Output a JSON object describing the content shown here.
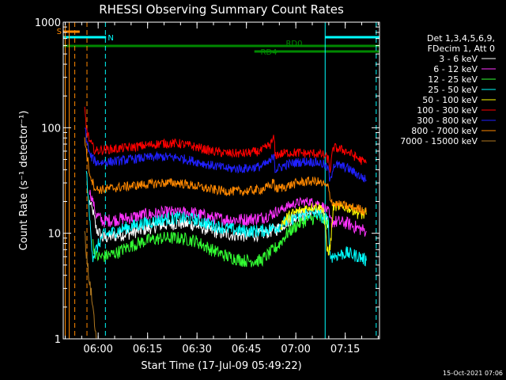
{
  "chart_data": {
    "type": "line",
    "title": "RHESSI Observing Summary Count Rates",
    "xlabel": "Start Time (17-Jul-09 05:49:22)",
    "ylabel": "Count Rate (s⁻¹ detector⁻¹)",
    "yscale": "log",
    "ylim": [
      1,
      1000
    ],
    "xlim_minutes": [
      0,
      96
    ],
    "x_ticks": [
      {
        "t": 10.6,
        "label": "06:00"
      },
      {
        "t": 25.6,
        "label": "06:15"
      },
      {
        "t": 40.6,
        "label": "06:30"
      },
      {
        "t": 55.6,
        "label": "06:45"
      },
      {
        "t": 70.6,
        "label": "07:00"
      },
      {
        "t": 85.6,
        "label": "07:15"
      }
    ],
    "y_ticks": [
      {
        "v": 1,
        "label": "1"
      },
      {
        "v": 10,
        "label": "10"
      },
      {
        "v": 100,
        "label": "100"
      },
      {
        "v": 1000,
        "label": "1000"
      }
    ],
    "legend": {
      "placement": "right",
      "header": [
        "Det 1,3,4,5,6,9,",
        "FDecim 1, Att 0"
      ]
    },
    "series": [
      {
        "name": "3 - 6 keV",
        "color": "#ffffff",
        "points": [
          [
            8,
            20
          ],
          [
            9,
            16
          ],
          [
            10,
            11
          ],
          [
            12,
            9
          ],
          [
            16,
            9.5
          ],
          [
            20,
            10
          ],
          [
            25,
            11
          ],
          [
            30,
            12
          ],
          [
            35,
            12.5
          ],
          [
            40,
            12
          ],
          [
            45,
            10.5
          ],
          [
            50,
            9.8
          ],
          [
            55,
            9.5
          ],
          [
            60,
            9.8
          ],
          [
            65,
            11
          ],
          [
            68,
            13
          ],
          [
            71,
            14.5
          ],
          [
            74,
            15.5
          ],
          [
            77,
            16
          ],
          [
            79,
            15
          ],
          [
            80.5,
            12.5
          ]
        ]
      },
      {
        "name": "6 - 12 keV",
        "color": "#ff33ff",
        "points": [
          [
            8,
            25
          ],
          [
            9,
            20
          ],
          [
            10,
            15
          ],
          [
            12,
            13
          ],
          [
            16,
            13.5
          ],
          [
            20,
            14
          ],
          [
            25,
            15
          ],
          [
            30,
            15.5
          ],
          [
            35,
            16
          ],
          [
            40,
            15.5
          ],
          [
            45,
            14
          ],
          [
            50,
            13.5
          ],
          [
            55,
            13.5
          ],
          [
            60,
            14
          ],
          [
            65,
            16
          ],
          [
            68,
            18
          ],
          [
            71,
            19.5
          ],
          [
            74,
            20
          ],
          [
            77,
            19.5
          ],
          [
            79,
            18
          ],
          [
            80.5,
            16
          ],
          [
            81,
            13
          ],
          [
            86,
            12.5
          ],
          [
            90,
            11
          ],
          [
            92,
            10.5
          ]
        ]
      },
      {
        "name": "12 - 25 keV",
        "color": "#33ff33",
        "points": [
          [
            9,
            8
          ],
          [
            10,
            6
          ],
          [
            12,
            6
          ],
          [
            16,
            6.5
          ],
          [
            20,
            7.5
          ],
          [
            25,
            8.5
          ],
          [
            30,
            9
          ],
          [
            35,
            9
          ],
          [
            40,
            8.5
          ],
          [
            45,
            7
          ],
          [
            50,
            6
          ],
          [
            55,
            5.5
          ],
          [
            60,
            5.5
          ],
          [
            65,
            7.5
          ],
          [
            68,
            10
          ],
          [
            71,
            12
          ],
          [
            74,
            13.5
          ],
          [
            77,
            14
          ],
          [
            79,
            13.5
          ],
          [
            80.5,
            12
          ]
        ]
      },
      {
        "name": "25 - 50 keV",
        "color": "#00ffff",
        "points": [
          [
            7,
            40
          ],
          [
            8,
            14
          ],
          [
            9,
            6
          ],
          [
            10,
            7
          ],
          [
            12,
            9.5
          ],
          [
            16,
            10.5
          ],
          [
            20,
            11.5
          ],
          [
            25,
            12.5
          ],
          [
            30,
            13.5
          ],
          [
            35,
            14
          ],
          [
            40,
            13.5
          ],
          [
            45,
            12
          ],
          [
            50,
            11
          ],
          [
            55,
            10.5
          ],
          [
            60,
            10.5
          ],
          [
            65,
            11.5
          ],
          [
            68,
            13
          ],
          [
            71,
            14.5
          ],
          [
            74,
            15.5
          ],
          [
            77,
            15.5
          ],
          [
            79,
            14
          ],
          [
            80.5,
            13
          ],
          [
            81,
            6
          ],
          [
            86,
            6.5
          ],
          [
            90,
            6
          ],
          [
            92,
            5.5
          ]
        ]
      },
      {
        "name": "50 - 100 keV",
        "color": "#ffff00",
        "points": [
          [
            66,
            12
          ],
          [
            68,
            14
          ],
          [
            71,
            16
          ],
          [
            74,
            17.5
          ],
          [
            77,
            18
          ],
          [
            79,
            17
          ],
          [
            80,
            7
          ],
          [
            81,
            7
          ],
          [
            82,
            18
          ],
          [
            86,
            17.5
          ],
          [
            90,
            15.5
          ],
          [
            92,
            15
          ]
        ]
      },
      {
        "name": "100 - 300 keV",
        "color": "#ff0000",
        "points": [
          [
            6.5,
            150
          ],
          [
            7,
            100
          ],
          [
            8,
            75
          ],
          [
            9,
            65
          ],
          [
            10,
            60
          ],
          [
            12,
            62
          ],
          [
            16,
            63
          ],
          [
            20,
            65
          ],
          [
            25,
            68
          ],
          [
            30,
            71
          ],
          [
            35,
            71
          ],
          [
            40,
            66
          ],
          [
            45,
            60
          ],
          [
            50,
            57
          ],
          [
            55,
            57
          ],
          [
            60,
            60
          ],
          [
            63,
            70
          ],
          [
            64,
            80
          ],
          [
            64.3,
            55
          ],
          [
            68,
            58
          ],
          [
            71,
            58
          ],
          [
            74,
            57
          ],
          [
            77,
            57
          ],
          [
            79,
            55
          ],
          [
            80.5,
            50
          ],
          [
            81,
            40
          ],
          [
            82,
            65
          ],
          [
            86,
            60
          ],
          [
            90,
            50
          ],
          [
            92,
            46
          ]
        ]
      },
      {
        "name": "300 - 800 keV",
        "color": "#2020ff",
        "points": [
          [
            6.5,
            110
          ],
          [
            7,
            80
          ],
          [
            8,
            55
          ],
          [
            10,
            47
          ],
          [
            12,
            47
          ],
          [
            16,
            48
          ],
          [
            20,
            50
          ],
          [
            25,
            52
          ],
          [
            30,
            53
          ],
          [
            35,
            52
          ],
          [
            40,
            48
          ],
          [
            45,
            44
          ],
          [
            50,
            41
          ],
          [
            55,
            41
          ],
          [
            60,
            43
          ],
          [
            63,
            48
          ],
          [
            64,
            58
          ],
          [
            64.3,
            40
          ],
          [
            68,
            45
          ],
          [
            71,
            47
          ],
          [
            74,
            48
          ],
          [
            77,
            47
          ],
          [
            79,
            45
          ],
          [
            80.5,
            40
          ],
          [
            81,
            30
          ],
          [
            82,
            45
          ],
          [
            86,
            42
          ],
          [
            90,
            35
          ],
          [
            92,
            32
          ]
        ]
      },
      {
        "name": "800 - 7000 keV",
        "color": "#ff8800",
        "points": [
          [
            6.5,
            80
          ],
          [
            7,
            60
          ],
          [
            8,
            38
          ],
          [
            9,
            30
          ],
          [
            10,
            26
          ],
          [
            12,
            26
          ],
          [
            16,
            27
          ],
          [
            20,
            28
          ],
          [
            25,
            29
          ],
          [
            30,
            30
          ],
          [
            35,
            30
          ],
          [
            40,
            28
          ],
          [
            45,
            26
          ],
          [
            50,
            25
          ],
          [
            55,
            25
          ],
          [
            60,
            26
          ],
          [
            63,
            28
          ],
          [
            64,
            32
          ],
          [
            64.3,
            26
          ],
          [
            68,
            28
          ],
          [
            71,
            30
          ],
          [
            74,
            31
          ],
          [
            77,
            31
          ],
          [
            79,
            29
          ],
          [
            80.5,
            27
          ],
          [
            81,
            22
          ],
          [
            82,
            19
          ],
          [
            86,
            18
          ],
          [
            90,
            17
          ],
          [
            92,
            16
          ]
        ]
      },
      {
        "name": "7000 - 15000 keV",
        "color": "#b07820",
        "points": [
          [
            6.5,
            12
          ],
          [
            7,
            6
          ],
          [
            8,
            3.5
          ],
          [
            9,
            2
          ],
          [
            10,
            1
          ]
        ]
      }
    ],
    "annotations": {
      "flags": [
        {
          "label": "SAA",
          "short": "S",
          "color": "#ff8800",
          "start": 0,
          "end": 5,
          "level": 1
        },
        {
          "label": "Night",
          "short": "N",
          "color": "#00ffff",
          "start": 0,
          "end": 13,
          "level": 2
        },
        {
          "label": "Night",
          "short": "",
          "color": "#00ffff",
          "start": 79.5,
          "end": 96,
          "level": 2
        },
        {
          "label": "RD0",
          "short": "RD0",
          "color": "#008800",
          "start": 0,
          "end": 96,
          "level": 3
        },
        {
          "label": "RD4",
          "short": "RD4",
          "color": "#008800",
          "start": 58,
          "end": 96,
          "level": 4
        }
      ],
      "vlines": [
        {
          "t": 0.6,
          "color": "#ff8800",
          "dash": false
        },
        {
          "t": 1.8,
          "color": "#ff8800",
          "dash": false
        },
        {
          "t": 3.5,
          "color": "#ff8800",
          "dash": true
        },
        {
          "t": 7.2,
          "color": "#ff8800",
          "dash": true
        },
        {
          "t": 12.8,
          "color": "#00ffff",
          "dash": true
        },
        {
          "t": 79.5,
          "color": "#00ffff",
          "dash": false
        },
        {
          "t": 95.0,
          "color": "#00ffff",
          "dash": true
        }
      ]
    },
    "footer": "15-Oct-2021 07:06"
  }
}
